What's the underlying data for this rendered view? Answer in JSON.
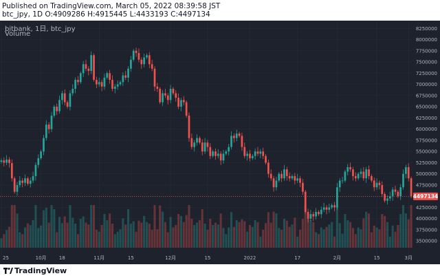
{
  "header": {
    "published": "Published on TradingView.com, March 05, 2022 08:39:58 JST",
    "ohlc": "btc_jpy, 1D O:4909286 H:4915445 L:4433193 C:4497134"
  },
  "legend": {
    "symbol_line": "bitbank, 1日, btc_jpy",
    "volume_label": "Volume"
  },
  "price_axis": {
    "ticks": [
      "8250000",
      "8000000",
      "7750000",
      "7500000",
      "7250000",
      "7000000",
      "6750000",
      "6500000",
      "6250000",
      "6000000",
      "5750000",
      "5500000",
      "5250000",
      "5000000",
      "4750000",
      "4500000",
      "4250000",
      "4000000",
      "3750000",
      "3500000"
    ],
    "current_price": "4497134"
  },
  "time_axis": {
    "ticks": [
      "25",
      "10月",
      "18",
      "11月",
      "15",
      "12月",
      "15",
      "2022",
      "17",
      "2月",
      "15",
      "3月"
    ]
  },
  "colors": {
    "up": "#26a69a",
    "down": "#ef5350",
    "background": "#1e222d",
    "grid": "#2a2e39",
    "text": "#b2b5be"
  },
  "footer": {
    "brand": "TradingView",
    "logo_icon": "tradingview-logo-icon"
  },
  "chart_data": {
    "type": "candlestick",
    "y_range": [
      3350000,
      8300000
    ],
    "y_unit": "JPY",
    "closes": [
      5300000,
      5250000,
      5320000,
      5240000,
      4900000,
      4600000,
      4750000,
      4850000,
      4800000,
      4900000,
      4780000,
      4850000,
      4950000,
      5200000,
      5350000,
      5500000,
      5800000,
      6100000,
      6000000,
      6300000,
      6500000,
      6400000,
      6650000,
      6800000,
      6600000,
      6500000,
      6800000,
      6900000,
      7100000,
      7050000,
      7250000,
      7450000,
      7350000,
      7300000,
      7650000,
      7100000,
      7000000,
      7050000,
      6950000,
      7150000,
      7250000,
      7100000,
      6900000,
      6950000,
      7000000,
      7050000,
      7200000,
      7150000,
      7350000,
      7550000,
      7750000,
      7700000,
      7550000,
      7450000,
      7600000,
      7650000,
      7450000,
      7350000,
      6950000,
      6900000,
      6600000,
      6800000,
      6750000,
      6650000,
      6900000,
      6800000,
      6700000,
      6500000,
      6650000,
      6600000,
      6300000,
      5800000,
      5600000,
      5700000,
      5800000,
      5700000,
      5500000,
      5700000,
      5600000,
      5400000,
      5500000,
      5400000,
      5450000,
      5300000,
      5450000,
      5500000,
      5600000,
      5850000,
      5800000,
      5900000,
      5850000,
      5600000,
      5400000,
      5450000,
      5350000,
      5400000,
      5500000,
      5450000,
      5500000,
      5400000,
      5250000,
      5000000,
      4900000,
      4700000,
      4850000,
      5000000,
      4900000,
      5100000,
      4950000,
      4900000,
      4950000,
      4850000,
      4900000,
      4800000,
      4600000,
      4150000,
      4000000,
      4100000,
      4050000,
      4150000,
      4100000,
      4200000,
      4250000,
      4200000,
      4250000,
      4300000,
      4250000,
      4700000,
      4850000,
      4850000,
      5050000,
      5150000,
      5100000,
      4950000,
      4900000,
      5000000,
      5050000,
      4900000,
      5100000,
      4950000,
      4850000,
      4700000,
      4800000,
      4750000,
      4550000,
      4400000,
      4450000,
      4500000,
      4650000,
      4600000,
      4500000,
      4700000,
      5000000,
      5150000,
      4900000,
      4497134
    ],
    "volume_note": "volume bars at bottom of pane (relative heights)"
  }
}
